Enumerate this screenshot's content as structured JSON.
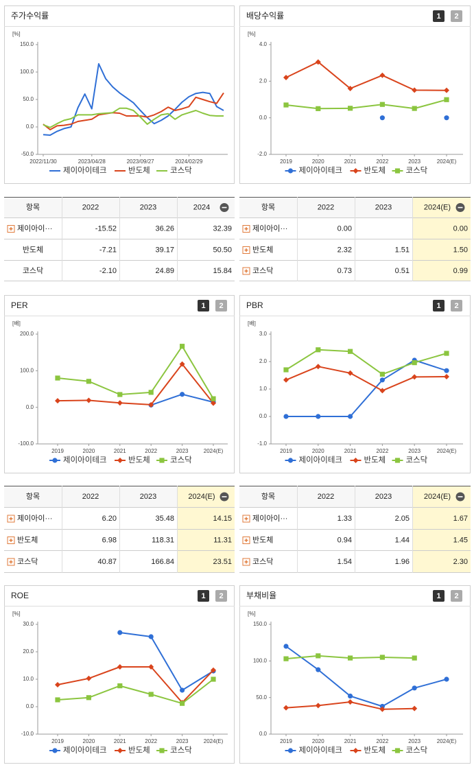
{
  "chart_data": [
    {
      "type": "line",
      "title": "주가수익률",
      "unit": "[%]",
      "categories": [
        "2022/11/30",
        null,
        null,
        null,
        null,
        null,
        null,
        "2023/04/28",
        null,
        null,
        null,
        null,
        null,
        null,
        "2023/09/27",
        null,
        null,
        null,
        null,
        null,
        null,
        "2024/02/29",
        null,
        null,
        null,
        null,
        null
      ],
      "series": [
        {
          "name": "제이아이테크",
          "color": "#2f6fd6",
          "values": [
            -14,
            -15,
            -8,
            -3,
            0,
            35,
            60,
            33,
            115,
            88,
            73,
            62,
            53,
            44,
            30,
            17,
            6,
            12,
            20,
            32,
            45,
            55,
            61,
            63,
            61,
            37,
            30
          ]
        },
        {
          "name": "반도체",
          "color": "#d9441c",
          "values": [
            5,
            -5,
            2,
            3,
            5,
            10,
            12,
            14,
            22,
            24,
            26,
            25,
            20,
            20,
            20,
            18,
            22,
            28,
            36,
            30,
            33,
            37,
            54,
            50,
            46,
            43,
            62
          ]
        },
        {
          "name": "코스닥",
          "color": "#8bc53f",
          "values": [
            4,
            -1,
            6,
            12,
            15,
            22,
            22,
            22,
            24,
            25,
            26,
            34,
            34,
            30,
            18,
            5,
            14,
            22,
            24,
            14,
            22,
            26,
            30,
            25,
            21,
            20,
            20
          ]
        }
      ],
      "ylim": [
        -50,
        150
      ],
      "yticks": [
        {
          "value": 150,
          "label": "150.0"
        },
        {
          "value": 100,
          "label": "100.0"
        },
        {
          "value": 50,
          "label": "50.0"
        },
        {
          "value": 0,
          "label": "0.0"
        },
        {
          "value": -50,
          "label": "-50.0"
        }
      ],
      "markers": false
    },
    {
      "type": "line",
      "title": "배당수익률",
      "unit": "[%]",
      "pager": [
        "1",
        "2"
      ],
      "categories": [
        "2019",
        "2020",
        "2021",
        "2022",
        "2023",
        "2024(E)"
      ],
      "series": [
        {
          "name": "제이아이테크",
          "color": "#2f6fd6",
          "marker": "circle",
          "values": [
            null,
            null,
            null,
            0,
            null,
            0
          ]
        },
        {
          "name": "반도체",
          "color": "#d9441c",
          "marker": "diamond",
          "values": [
            2.2,
            3.05,
            1.6,
            2.32,
            1.51,
            1.5
          ]
        },
        {
          "name": "코스닥",
          "color": "#8bc53f",
          "marker": "square",
          "values": [
            0.7,
            0.5,
            0.52,
            0.73,
            0.51,
            0.99
          ]
        }
      ],
      "ylim": [
        -2,
        4
      ],
      "yticks": [
        {
          "value": 4,
          "label": "4.0"
        },
        {
          "value": 2,
          "label": "2.0"
        },
        {
          "value": 0,
          "label": "0.0"
        },
        {
          "value": -2,
          "label": "-2.0"
        }
      ],
      "markers": true
    },
    {
      "type": "line",
      "title": "PER",
      "unit": "[배]",
      "pager": [
        "1",
        "2"
      ],
      "categories": [
        "2019",
        "2020",
        "2021",
        "2022",
        "2023",
        "2024(E)"
      ],
      "series": [
        {
          "name": "제이아이테크",
          "color": "#2f6fd6",
          "marker": "circle",
          "values": [
            null,
            null,
            null,
            6.2,
            35.48,
            14.15
          ]
        },
        {
          "name": "반도체",
          "color": "#d9441c",
          "marker": "diamond",
          "values": [
            18,
            19,
            12,
            6.98,
            118.31,
            11.31
          ]
        },
        {
          "name": "코스닥",
          "color": "#8bc53f",
          "marker": "square",
          "values": [
            80,
            71,
            35,
            40.87,
            166.84,
            23.51
          ]
        }
      ],
      "ylim": [
        -100,
        200
      ],
      "yticks": [
        {
          "value": 200,
          "label": "200.0"
        },
        {
          "value": 100,
          "label": "100.0"
        },
        {
          "value": 0,
          "label": "0.0"
        },
        {
          "value": -100,
          "label": "-100.0"
        }
      ],
      "markers": true
    },
    {
      "type": "line",
      "title": "PBR",
      "unit": "[배]",
      "pager": [
        "1",
        "2"
      ],
      "categories": [
        "2019",
        "2020",
        "2021",
        "2022",
        "2023",
        "2024(E)"
      ],
      "series": [
        {
          "name": "제이아이테크",
          "color": "#2f6fd6",
          "marker": "circle",
          "values": [
            0,
            0,
            0,
            1.33,
            2.05,
            1.67
          ]
        },
        {
          "name": "반도체",
          "color": "#d9441c",
          "marker": "diamond",
          "values": [
            1.33,
            1.82,
            1.58,
            0.94,
            1.44,
            1.45
          ]
        },
        {
          "name": "코스닥",
          "color": "#8bc53f",
          "marker": "square",
          "values": [
            1.7,
            2.43,
            2.37,
            1.54,
            1.96,
            2.3
          ]
        }
      ],
      "ylim": [
        -1,
        3
      ],
      "yticks": [
        {
          "value": 3,
          "label": "3.0"
        },
        {
          "value": 2,
          "label": "2.0"
        },
        {
          "value": 1,
          "label": "1.0"
        },
        {
          "value": 0,
          "label": "0.0"
        },
        {
          "value": -1,
          "label": "-1.0"
        }
      ],
      "markers": true
    },
    {
      "type": "line",
      "title": "ROE",
      "unit": "[%]",
      "pager": [
        "1",
        "2"
      ],
      "categories": [
        "2019",
        "2020",
        "2021",
        "2022",
        "2023",
        "2024(E)"
      ],
      "series": [
        {
          "name": "제이아이테크",
          "color": "#2f6fd6",
          "marker": "circle",
          "values": [
            null,
            null,
            27,
            25.5,
            6,
            13
          ]
        },
        {
          "name": "반도체",
          "color": "#d9441c",
          "marker": "diamond",
          "values": [
            8,
            10.3,
            14.5,
            14.5,
            1.5,
            13.3
          ]
        },
        {
          "name": "코스닥",
          "color": "#8bc53f",
          "marker": "square",
          "values": [
            2.5,
            3.3,
            7.6,
            4.5,
            1.2,
            10
          ]
        }
      ],
      "ylim": [
        -10,
        30
      ],
      "yticks": [
        {
          "value": 30,
          "label": "30.0"
        },
        {
          "value": 20,
          "label": "20.0"
        },
        {
          "value": 10,
          "label": "10.0"
        },
        {
          "value": 0,
          "label": "0.0"
        },
        {
          "value": -10,
          "label": "-10.0"
        }
      ],
      "markers": true
    },
    {
      "type": "line",
      "title": "부채비율",
      "unit": "[%]",
      "pager": [
        "1",
        "2"
      ],
      "categories": [
        "2019",
        "2020",
        "2021",
        "2022",
        "2023",
        "2024(E)"
      ],
      "series": [
        {
          "name": "제이아이테크",
          "color": "#2f6fd6",
          "marker": "circle",
          "values": [
            120,
            88,
            52,
            38,
            63,
            75
          ]
        },
        {
          "name": "반도체",
          "color": "#d9441c",
          "marker": "diamond",
          "values": [
            36,
            39,
            44,
            34,
            35,
            null
          ]
        },
        {
          "name": "코스닥",
          "color": "#8bc53f",
          "marker": "square",
          "values": [
            103,
            107,
            104,
            105,
            104,
            null
          ]
        }
      ],
      "ylim": [
        0,
        150
      ],
      "yticks": [
        {
          "value": 150,
          "label": "150.0"
        },
        {
          "value": 100,
          "label": "100.0"
        },
        {
          "value": 50,
          "label": "50.0"
        },
        {
          "value": 0,
          "label": "0.0"
        }
      ],
      "markers": true
    }
  ],
  "tables": [
    {
      "header": [
        "항목",
        "2022",
        "2023",
        "2024"
      ],
      "highlight": false,
      "rows": [
        [
          "제이아이···",
          "-15.52",
          "36.26",
          "32.39"
        ],
        [
          "반도체",
          "-7.21",
          "39.17",
          "50.50"
        ],
        [
          "코스닥",
          "-2.10",
          "24.89",
          "15.84"
        ]
      ]
    },
    {
      "header": [
        "항목",
        "2022",
        "2023",
        "2024(E)"
      ],
      "highlight": true,
      "rows": [
        [
          "제이아이···",
          "0.00",
          "",
          "0.00"
        ],
        [
          "반도체",
          "2.32",
          "1.51",
          "1.50"
        ],
        [
          "코스닥",
          "0.73",
          "0.51",
          "0.99"
        ]
      ]
    },
    {
      "header": [
        "항목",
        "2022",
        "2023",
        "2024(E)"
      ],
      "highlight": true,
      "rows": [
        [
          "제이아이···",
          "6.20",
          "35.48",
          "14.15"
        ],
        [
          "반도체",
          "6.98",
          "118.31",
          "11.31"
        ],
        [
          "코스닥",
          "40.87",
          "166.84",
          "23.51"
        ]
      ]
    },
    {
      "header": [
        "항목",
        "2022",
        "2023",
        "2024(E)"
      ],
      "highlight": true,
      "rows": [
        [
          "제이아이···",
          "1.33",
          "2.05",
          "1.67"
        ],
        [
          "반도체",
          "0.94",
          "1.44",
          "1.45"
        ],
        [
          "코스닥",
          "1.54",
          "1.96",
          "2.30"
        ]
      ]
    }
  ]
}
